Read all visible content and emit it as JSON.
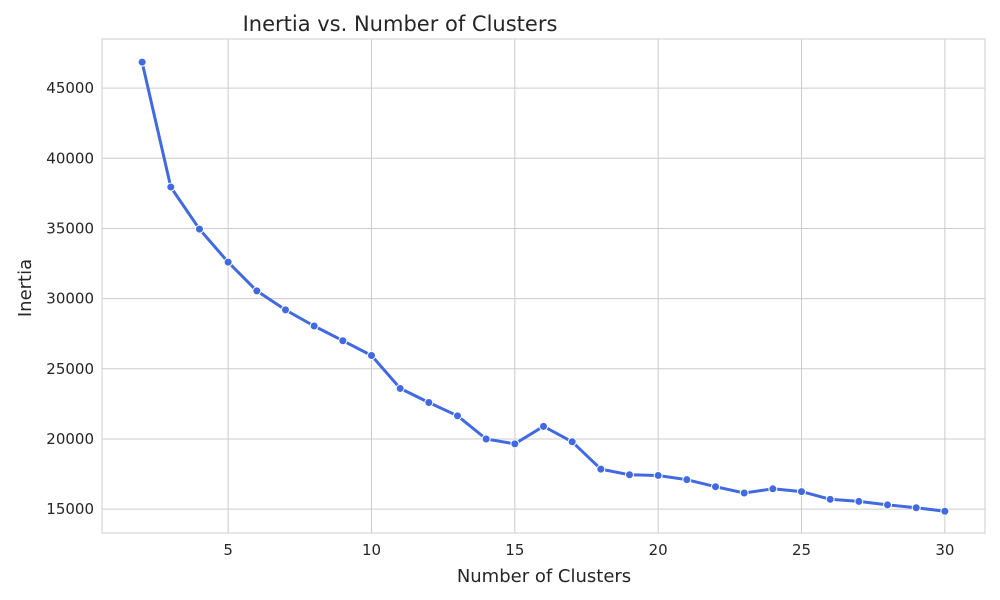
{
  "chart_data": {
    "type": "line",
    "title": "Inertia vs. Number of Clusters",
    "xlabel": "Number of Clusters",
    "ylabel": "Inertia",
    "xlim": [
      0.6,
      31.4
    ],
    "ylim": [
      13300,
      48500
    ],
    "xticks": [
      5,
      10,
      15,
      20,
      25,
      30
    ],
    "yticks": [
      15000,
      20000,
      25000,
      30000,
      35000,
      40000,
      45000
    ],
    "grid": true,
    "series": [
      {
        "color": "#4169e1",
        "x": [
          2,
          3,
          4,
          5,
          6,
          7,
          8,
          9,
          10,
          11,
          12,
          13,
          14,
          15,
          16,
          17,
          18,
          19,
          20,
          21,
          22,
          23,
          24,
          25,
          26,
          27,
          28,
          29,
          30
        ],
        "values": [
          46850,
          37950,
          34950,
          32600,
          30550,
          29200,
          28050,
          27000,
          25950,
          23600,
          22600,
          21650,
          20000,
          19650,
          20900,
          19800,
          17850,
          17450,
          17400,
          17100,
          16600,
          16150,
          16450,
          16250,
          15700,
          15550,
          15300,
          15100,
          14850
        ]
      }
    ]
  }
}
